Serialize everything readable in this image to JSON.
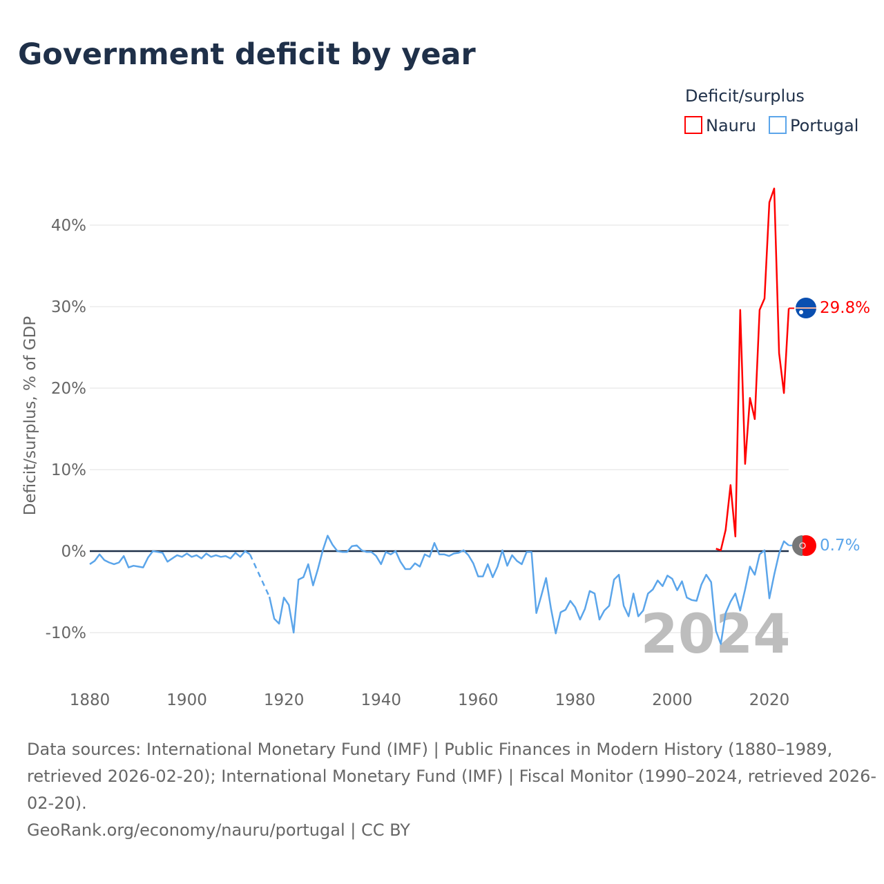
{
  "chart_data": {
    "type": "line",
    "title": "Government deficit by year",
    "ylabel": "Deficit/surplus, % of GDP",
    "xlabel": "",
    "xlim": [
      1880,
      2024
    ],
    "ylim": [
      -15,
      47
    ],
    "x_ticks": [
      1880,
      1900,
      1920,
      1940,
      1960,
      1980,
      2000,
      2020
    ],
    "y_ticks": [
      -10,
      0,
      10,
      20,
      30,
      40
    ],
    "y_tick_labels": [
      "-10%",
      "0%",
      "10%",
      "20%",
      "30%",
      "40%"
    ],
    "x_tick_labels": [
      "1880",
      "1900",
      "1920",
      "1940",
      "1960",
      "1980",
      "2000",
      "2020"
    ],
    "grid": true,
    "legend_title": "Deficit/surplus",
    "legend_position": "top-right",
    "year_label": "2024",
    "series": [
      {
        "name": "Nauru",
        "color": "#ff0000",
        "start_year": 2009,
        "values": [
          0.3,
          0.1,
          2.6,
          8.1,
          1.8,
          29.6,
          10.7,
          18.8,
          16.2,
          29.6,
          31.0,
          42.8,
          44.5,
          24.3,
          19.4,
          29.8
        ],
        "end_label": "29.8%"
      },
      {
        "name": "Portugal",
        "color": "#5ba5ea",
        "start_year": 1880,
        "values": [
          -1.6,
          -1.2,
          -0.4,
          -1.1,
          -1.4,
          -1.6,
          -1.4,
          -0.6,
          -2.0,
          -1.8,
          -1.9,
          -2.0,
          -0.8,
          0.0,
          -0.1,
          -0.2,
          -1.3,
          -0.9,
          -0.5,
          -0.7,
          -0.3,
          -0.7,
          -0.5,
          -0.9,
          -0.3,
          -0.7,
          -0.5,
          -0.7,
          -0.6,
          -0.9,
          -0.2,
          -0.7,
          0.0,
          -0.4,
          null,
          null,
          null,
          -5.6,
          -8.3,
          -8.9,
          -5.7,
          -6.6,
          -10.0,
          -3.5,
          -3.2,
          -1.6,
          -4.2,
          -2.2,
          0.1,
          1.9,
          0.8,
          0.0,
          -0.1,
          -0.1,
          0.6,
          0.7,
          0.1,
          -0.1,
          -0.1,
          -0.6,
          -1.6,
          -0.1,
          -0.4,
          0.0,
          -1.3,
          -2.2,
          -2.2,
          -1.5,
          -1.9,
          -0.4,
          -0.7,
          1.0,
          -0.4,
          -0.4,
          -0.6,
          -0.3,
          -0.2,
          0.1,
          -0.5,
          -1.5,
          -3.1,
          -3.1,
          -1.6,
          -3.2,
          -1.9,
          0.1,
          -1.8,
          -0.5,
          -1.2,
          -1.6,
          -0.1,
          -0.1,
          -7.6,
          -5.5,
          -3.3,
          -7.0,
          -10.1,
          -7.5,
          -7.2,
          -6.1,
          -6.9,
          -8.4,
          -7.1,
          -4.9,
          -5.2,
          -8.4,
          -7.3,
          -6.7,
          -3.5,
          -2.9,
          -6.7,
          -8.0,
          -5.2,
          -8.0,
          -7.3,
          -5.2,
          -4.7,
          -3.6,
          -4.3,
          -3.0,
          -3.4,
          -4.8,
          -3.7,
          -5.7,
          -6.0,
          -6.1,
          -4.1,
          -2.9,
          -3.8,
          -9.8,
          -11.4,
          -7.6,
          -6.2,
          -5.2,
          -7.3,
          -4.7,
          -1.9,
          -2.9,
          -0.4,
          0.1,
          -5.8,
          -2.9,
          -0.3,
          1.2,
          0.7
        ],
        "end_label": "0.7%"
      }
    ]
  },
  "footer": {
    "line1": "Data sources: International Monetary Fund (IMF) | Public Finances in Modern History (1880–1989,",
    "line2": "retrieved 2026-02-20); International Monetary Fund (IMF) | Fiscal Monitor (1990–2024, retrieved 2026-",
    "line3": "02-20).",
    "line4": "GeoRank.org/economy/nauru/portugal | CC BY"
  }
}
